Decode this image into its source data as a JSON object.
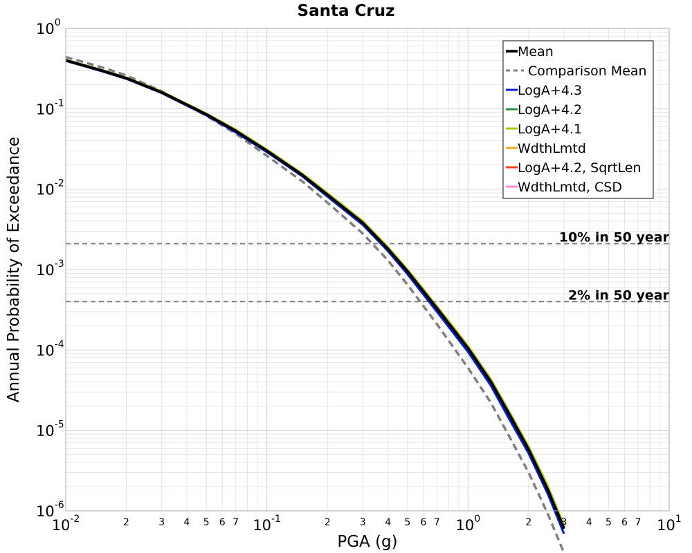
{
  "chart_data": {
    "type": "line",
    "title": "Santa Cruz",
    "xlabel": "PGA (g)",
    "ylabel": "Annual Probability of Exceedance",
    "xscale": "log",
    "yscale": "log",
    "xlim": [
      0.01,
      10
    ],
    "ylim": [
      1e-06,
      1
    ],
    "grid": true,
    "legend_position": "top-right",
    "x": [
      0.01,
      0.015,
      0.02,
      0.03,
      0.05,
      0.07,
      0.1,
      0.15,
      0.2,
      0.3,
      0.4,
      0.5,
      0.7,
      1.0,
      1.3,
      1.6,
      2.0,
      2.5,
      3.0
    ],
    "series": [
      {
        "name": "Mean",
        "color": "#000000",
        "style": "solid",
        "y": [
          0.4,
          0.3,
          0.24,
          0.16,
          0.085,
          0.053,
          0.03,
          0.015,
          0.0085,
          0.0038,
          0.0018,
          0.00095,
          0.00033,
          0.000105,
          4e-05,
          1.6e-05,
          5.8e-06,
          1.8e-06,
          6e-07
        ]
      },
      {
        "name": "Comparison Mean",
        "color": "#808080",
        "style": "dashed",
        "y": [
          0.44,
          0.33,
          0.26,
          0.165,
          0.082,
          0.049,
          0.026,
          0.0125,
          0.0068,
          0.0028,
          0.0013,
          0.00065,
          0.00021,
          6e-05,
          2.2e-05,
          8.5e-06,
          3e-06,
          9e-07,
          3e-07
        ]
      },
      {
        "name": "LogA+4.3",
        "color": "#0022dd",
        "style": "solid",
        "y": [
          0.395,
          0.295,
          0.236,
          0.157,
          0.083,
          0.051,
          0.029,
          0.0145,
          0.0081,
          0.0036,
          0.0017,
          0.00088,
          0.0003,
          9.5e-05,
          3.6e-05,
          1.4e-05,
          5.2e-06,
          1.6e-06,
          5.2e-07
        ]
      },
      {
        "name": "LogA+4.2",
        "color": "#2e8b3e",
        "style": "solid",
        "y": [
          0.4,
          0.3,
          0.24,
          0.16,
          0.085,
          0.053,
          0.03,
          0.015,
          0.0085,
          0.0038,
          0.0018,
          0.00095,
          0.00033,
          0.000105,
          4e-05,
          1.6e-05,
          5.8e-06,
          1.8e-06,
          6e-07
        ]
      },
      {
        "name": "LogA+4.1",
        "color": "#a8c800",
        "style": "solid",
        "y": [
          0.405,
          0.305,
          0.244,
          0.163,
          0.087,
          0.055,
          0.031,
          0.0156,
          0.0089,
          0.004,
          0.0019,
          0.001,
          0.00035,
          0.000112,
          4.3e-05,
          1.72e-05,
          6.3e-06,
          2e-06,
          6.6e-07
        ]
      },
      {
        "name": "WdthLmtd",
        "color": "#f5a623",
        "style": "solid",
        "y": [
          0.4,
          0.3,
          0.24,
          0.16,
          0.085,
          0.053,
          0.03,
          0.015,
          0.0085,
          0.0038,
          0.0018,
          0.00095,
          0.00033,
          0.000105,
          4e-05,
          1.6e-05,
          5.8e-06,
          1.8e-06,
          6e-07
        ]
      },
      {
        "name": "LogA+4.2, SqrtLen",
        "color": "#ee4411",
        "style": "solid",
        "y": [
          0.4,
          0.3,
          0.24,
          0.16,
          0.085,
          0.053,
          0.03,
          0.015,
          0.0085,
          0.0038,
          0.0018,
          0.00095,
          0.00033,
          0.000105,
          4e-05,
          1.6e-05,
          5.8e-06,
          1.8e-06,
          6e-07
        ]
      },
      {
        "name": "WdthLmtd, CSD",
        "color": "#ff88dd",
        "style": "solid",
        "y": [
          0.4,
          0.3,
          0.24,
          0.16,
          0.085,
          0.053,
          0.03,
          0.015,
          0.0085,
          0.0038,
          0.0018,
          0.00095,
          0.00033,
          0.000105,
          4e-05,
          1.6e-05,
          5.8e-06,
          1.8e-06,
          6e-07
        ]
      }
    ],
    "reference_lines": [
      {
        "label": "10% in 50 year",
        "y": 0.0021,
        "color": "#777777"
      },
      {
        "label": "2% in 50 year",
        "y": 0.0004,
        "color": "#777777"
      }
    ],
    "x_ticks": {
      "major": [
        {
          "value": 0.01,
          "base": "10",
          "exp": "-2"
        },
        {
          "value": 0.1,
          "base": "10",
          "exp": "-1"
        },
        {
          "value": 1,
          "base": "10",
          "exp": "0"
        },
        {
          "value": 10,
          "base": "10",
          "exp": "1"
        }
      ],
      "minor_labels": [
        "2",
        "3",
        "4",
        "5",
        "6",
        "7"
      ]
    },
    "y_ticks": {
      "major": [
        {
          "value": 1,
          "base": "10",
          "exp": "0"
        },
        {
          "value": 0.1,
          "base": "10",
          "exp": "-1"
        },
        {
          "value": 0.01,
          "base": "10",
          "exp": "-2"
        },
        {
          "value": 0.001,
          "base": "10",
          "exp": "-3"
        },
        {
          "value": 0.0001,
          "base": "10",
          "exp": "-4"
        },
        {
          "value": 1e-05,
          "base": "10",
          "exp": "-5"
        },
        {
          "value": 1e-06,
          "base": "10",
          "exp": "-6"
        }
      ]
    }
  }
}
